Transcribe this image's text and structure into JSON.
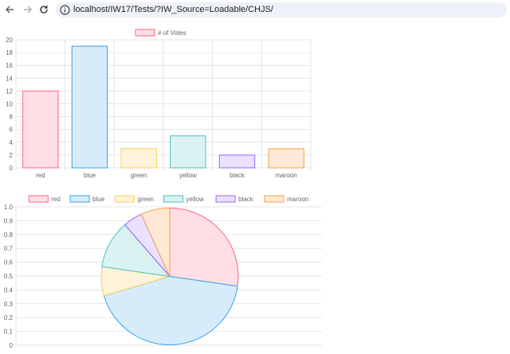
{
  "browser": {
    "url": "localhost/IW17/Tests/?IW_Source=Loadable/CHJS/",
    "icons": [
      "back-arrow-icon",
      "forward-arrow-icon",
      "reload-icon",
      "info-icon"
    ]
  },
  "colors": {
    "fills": [
      "#ffdfe5",
      "#d7ecfb",
      "#fff3d9",
      "#dbf2f2",
      "#ebe0ff",
      "#ffe9d6"
    ],
    "strokes": [
      "#ff6384",
      "#36a2eb",
      "#ffcd56",
      "#4bc0c0",
      "#9966ff",
      "#ff9f40"
    ],
    "grid": "#e6e6e6",
    "text": "#666666"
  },
  "chart_data": [
    {
      "type": "bar",
      "categories": [
        "red",
        "blue",
        "green",
        "yellow",
        "black",
        "maroon"
      ],
      "series": [
        {
          "name": "# of Votes",
          "values": [
            12,
            19,
            3,
            5,
            2,
            3
          ]
        }
      ],
      "ylim": [
        0,
        20
      ],
      "yticks": [
        "0",
        "2",
        "4",
        "6",
        "8",
        "10",
        "12",
        "14",
        "16",
        "18",
        "20"
      ],
      "grid": true,
      "legend": "top"
    },
    {
      "type": "pie",
      "labels": [
        "red",
        "blue",
        "green",
        "yellow",
        "black",
        "maroon"
      ],
      "values": [
        12,
        19,
        3,
        5,
        2,
        3
      ],
      "yticks": [
        "0",
        "0.1",
        "0.2",
        "0.3",
        "0.4",
        "0.5",
        "0.6",
        "0.7",
        "0.8",
        "0.9",
        "1.0"
      ],
      "grid": true,
      "legend": "top"
    }
  ]
}
